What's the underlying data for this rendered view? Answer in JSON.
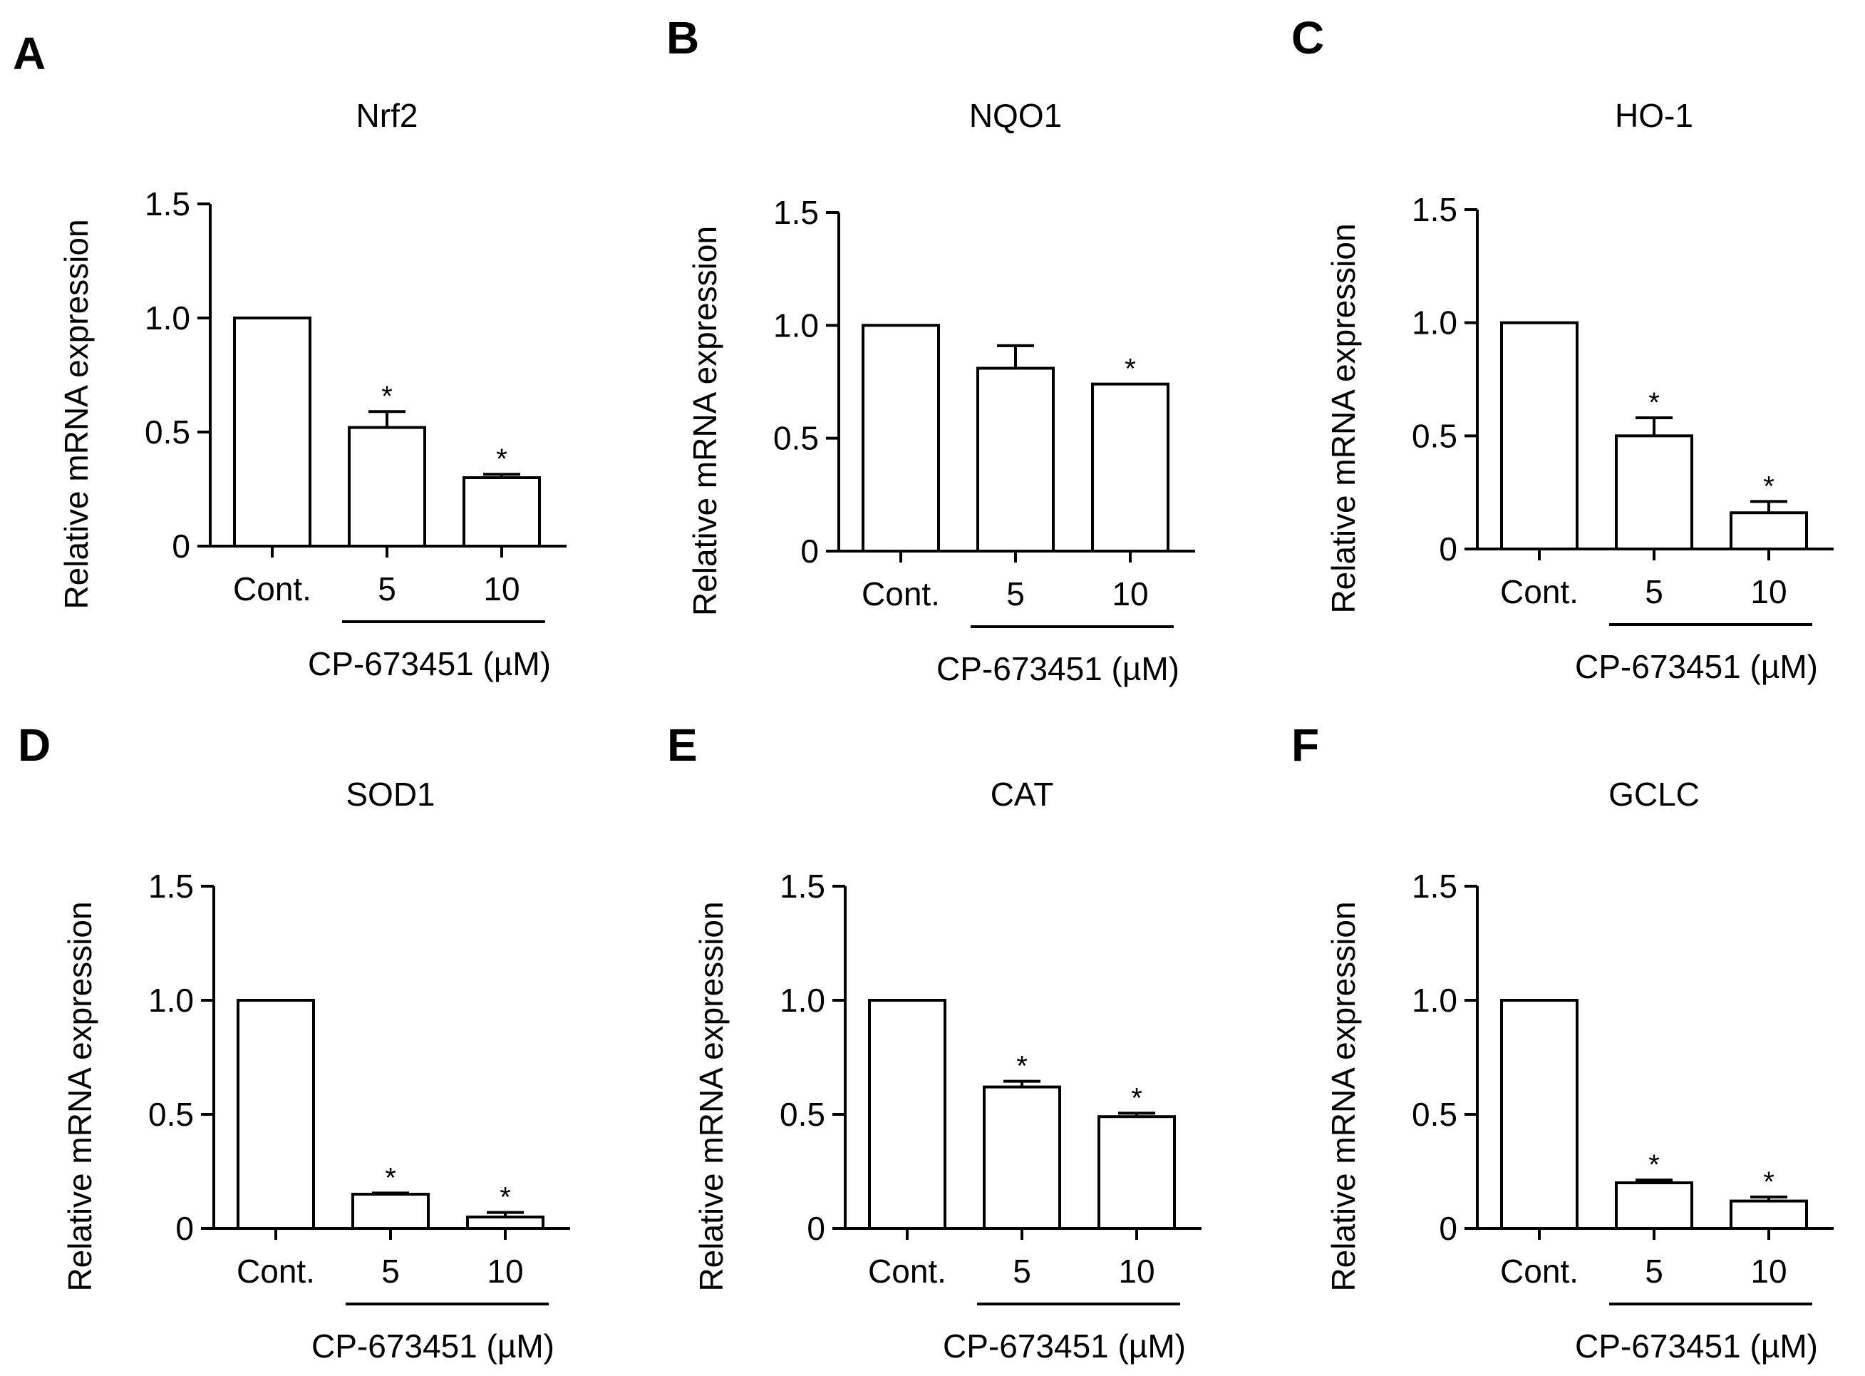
{
  "chart_data": [
    {
      "panel": "A",
      "type": "bar",
      "title": "Nrf2",
      "ylabel": "Relative mRNA expression",
      "ylim": [
        0,
        1.5
      ],
      "yticks": [
        "0",
        "0.5",
        "1.0",
        "1.5"
      ],
      "categories": [
        "Cont.",
        "5",
        "10"
      ],
      "values": [
        1.0,
        0.52,
        0.3
      ],
      "errors": [
        0,
        0.07,
        0.015
      ],
      "significance": [
        "",
        "*",
        "*"
      ],
      "group_label": "CP-673451 (µM)"
    },
    {
      "panel": "B",
      "type": "bar",
      "title": "NQO1",
      "ylabel": "Relative mRNA expression",
      "ylim": [
        0,
        1.5
      ],
      "yticks": [
        "0",
        "0.5",
        "1.0",
        "1.5"
      ],
      "categories": [
        "Cont.",
        "5",
        "10"
      ],
      "values": [
        1.0,
        0.81,
        0.74
      ],
      "errors": [
        0,
        0.1,
        0
      ],
      "significance": [
        "",
        "",
        "*"
      ],
      "group_label": "CP-673451 (µM)"
    },
    {
      "panel": "C",
      "type": "bar",
      "title": "HO-1",
      "ylabel": "Relative mRNA expression",
      "ylim": [
        0,
        1.5
      ],
      "yticks": [
        "0",
        "0.5",
        "1.0",
        "1.5"
      ],
      "categories": [
        "Cont.",
        "5",
        "10"
      ],
      "values": [
        1.0,
        0.5,
        0.16
      ],
      "errors": [
        0,
        0.08,
        0.05
      ],
      "significance": [
        "",
        "*",
        "*"
      ],
      "group_label": "CP-673451 (µM)"
    },
    {
      "panel": "D",
      "type": "bar",
      "title": "SOD1",
      "ylabel": "Relative mRNA expression",
      "ylim": [
        0,
        1.5
      ],
      "yticks": [
        "0",
        "0.5",
        "1.0",
        "1.5"
      ],
      "categories": [
        "Cont.",
        "5",
        "10"
      ],
      "values": [
        1.0,
        0.15,
        0.05
      ],
      "errors": [
        0,
        0.005,
        0.02
      ],
      "significance": [
        "",
        "*",
        "*"
      ],
      "group_label": "CP-673451 (µM)"
    },
    {
      "panel": "E",
      "type": "bar",
      "title": "CAT",
      "ylabel": "Relative mRNA expression",
      "ylim": [
        0,
        1.5
      ],
      "yticks": [
        "0",
        "0.5",
        "1.0",
        "1.5"
      ],
      "categories": [
        "Cont.",
        "5",
        "10"
      ],
      "values": [
        1.0,
        0.62,
        0.49
      ],
      "errors": [
        0,
        0.025,
        0.015
      ],
      "significance": [
        "",
        "*",
        "*"
      ],
      "group_label": "CP-673451 (µM)"
    },
    {
      "panel": "F",
      "type": "bar",
      "title": "GCLC",
      "ylabel": "Relative mRNA expression",
      "ylim": [
        0,
        1.5
      ],
      "yticks": [
        "0",
        "0.5",
        "1.0",
        "1.5"
      ],
      "categories": [
        "Cont.",
        "5",
        "10"
      ],
      "values": [
        1.0,
        0.2,
        0.12
      ],
      "errors": [
        0,
        0.012,
        0.018
      ],
      "significance": [
        "",
        "*",
        "*"
      ],
      "group_label": "CP-673451 (µM)"
    }
  ]
}
